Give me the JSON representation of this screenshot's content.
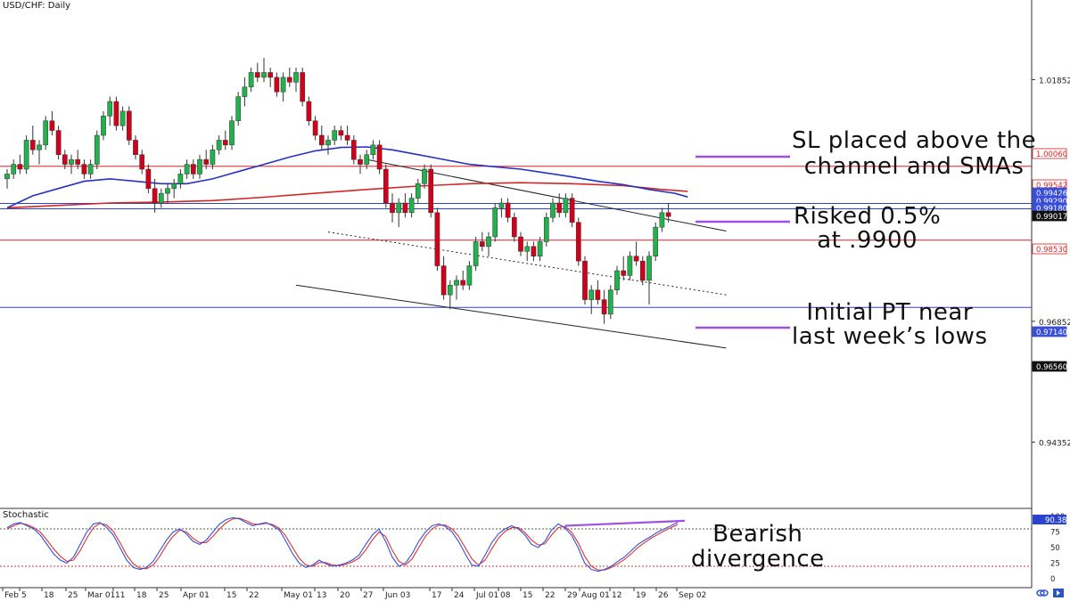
{
  "symbol_title": "USD/CHF: Daily",
  "stochastic_title": "Stochastic",
  "annotations": {
    "sl": [
      "SL placed above the",
      "channel and SMAs"
    ],
    "risk": [
      "Risked 0.5%",
      "at .9900"
    ],
    "pt": [
      "Initial PT near",
      "last week’s lows"
    ],
    "divergence": [
      "Bearish",
      "divergence"
    ]
  },
  "colors": {
    "up_candle": "#22b14c",
    "down_candle": "#d0021b",
    "sma_fast": "#2431c6",
    "sma_slow": "#d32626",
    "level_red": "#e02020",
    "level_blue": "#3040d0",
    "annotation_purple": "#a050e0",
    "stoch_k": "#3050e0",
    "stoch_d": "#e03030"
  },
  "chart_data": {
    "type": "candlestick",
    "price_axis_labels": [
      "1.01852",
      "0.96852",
      "0.94352"
    ],
    "price_ylim": [
      0.93,
      1.035
    ],
    "price_badges": [
      {
        "label": "1.00060",
        "value": 1.0006,
        "style": "red"
      },
      {
        "label": "0.99542",
        "value": 0.99542,
        "style": "red"
      },
      {
        "label": "0.99426",
        "value": 0.99426,
        "style": "blue"
      },
      {
        "label": "0.99290",
        "value": 0.9929,
        "style": "blue"
      },
      {
        "label": "0.99180",
        "value": 0.9918,
        "style": "blue"
      },
      {
        "label": "0.99017",
        "value": 0.99017,
        "style": "current"
      },
      {
        "label": "0.98530",
        "value": 0.9853,
        "style": "red"
      },
      {
        "label": "0.97140",
        "value": 0.9714,
        "style": "blue"
      },
      {
        "label": "0.96560",
        "value": 0.9656,
        "style": "current"
      }
    ],
    "horizontal_levels": [
      {
        "value": 1.0006,
        "color": "red"
      },
      {
        "value": 0.9929,
        "color": "blue"
      },
      {
        "value": 0.9918,
        "color": "blue"
      },
      {
        "value": 0.9853,
        "color": "red"
      },
      {
        "value": 0.9714,
        "color": "blue"
      }
    ],
    "x_labels": [
      "Feb",
      "5",
      "18",
      "25",
      "Mar 01",
      "11",
      "18",
      "25",
      "Apr 01",
      "15",
      "22",
      "May 01",
      "13",
      "20",
      "27",
      "Jun 03",
      "17",
      "24",
      "Jul 01",
      "08",
      "15",
      "22",
      "29",
      "Aug 01",
      "12",
      "19",
      "26",
      "Sep 02"
    ],
    "candles": [
      [
        0.998,
        1.0,
        0.996,
        0.999
      ],
      [
        0.999,
        1.002,
        0.998,
        1.001
      ],
      [
        1.001,
        1.003,
        0.999,
        1.0
      ],
      [
        1.0,
        1.007,
        0.999,
        1.006
      ],
      [
        1.006,
        1.009,
        1.003,
        1.004
      ],
      [
        1.004,
        1.006,
        1.001,
        1.005
      ],
      [
        1.005,
        1.011,
        1.004,
        1.01
      ],
      [
        1.01,
        1.012,
        1.007,
        1.008
      ],
      [
        1.008,
        1.009,
        1.002,
        1.003
      ],
      [
        1.003,
        1.004,
        1.0,
        1.001
      ],
      [
        1.001,
        1.003,
        0.999,
        1.002
      ],
      [
        1.002,
        1.004,
        1.0,
        1.001
      ],
      [
        1.001,
        1.002,
        0.998,
        0.999
      ],
      [
        0.999,
        1.002,
        0.998,
        1.001
      ],
      [
        1.001,
        1.008,
        1.0,
        1.007
      ],
      [
        1.007,
        1.012,
        1.006,
        1.011
      ],
      [
        1.011,
        1.015,
        1.009,
        1.014
      ],
      [
        1.014,
        1.015,
        1.008,
        1.009
      ],
      [
        1.009,
        1.013,
        1.008,
        1.012
      ],
      [
        1.012,
        1.013,
        1.005,
        1.006
      ],
      [
        1.006,
        1.007,
        1.002,
        1.003
      ],
      [
        1.003,
        1.004,
        0.999,
        1.0
      ],
      [
        1.0,
        1.001,
        0.995,
        0.996
      ],
      [
        0.996,
        0.998,
        0.991,
        0.993
      ],
      [
        0.993,
        0.996,
        0.992,
        0.995
      ],
      [
        0.995,
        0.997,
        0.993,
        0.996
      ],
      [
        0.996,
        0.998,
        0.994,
        0.997
      ],
      [
        0.997,
        1.0,
        0.996,
        0.999
      ],
      [
        0.999,
        1.002,
        0.998,
        1.001
      ],
      [
        1.001,
        1.002,
        0.998,
        0.999
      ],
      [
        0.999,
        1.003,
        0.998,
        1.002
      ],
      [
        1.002,
        1.004,
        1.0,
        1.001
      ],
      [
        1.001,
        1.005,
        1.0,
        1.004
      ],
      [
        1.004,
        1.007,
        1.003,
        1.006
      ],
      [
        1.006,
        1.008,
        1.004,
        1.005
      ],
      [
        1.005,
        1.011,
        1.004,
        1.01
      ],
      [
        1.01,
        1.016,
        1.009,
        1.015
      ],
      [
        1.015,
        1.019,
        1.013,
        1.017
      ],
      [
        1.017,
        1.021,
        1.016,
        1.02
      ],
      [
        1.02,
        1.022,
        1.018,
        1.019
      ],
      [
        1.019,
        1.023,
        1.018,
        1.02
      ],
      [
        1.02,
        1.021,
        1.017,
        1.019
      ],
      [
        1.019,
        1.02,
        1.015,
        1.016
      ],
      [
        1.016,
        1.02,
        1.014,
        1.019
      ],
      [
        1.019,
        1.021,
        1.017,
        1.018
      ],
      [
        1.018,
        1.021,
        1.016,
        1.02
      ],
      [
        1.02,
        1.021,
        1.013,
        1.014
      ],
      [
        1.014,
        1.015,
        1.009,
        1.01
      ],
      [
        1.01,
        1.011,
        1.006,
        1.007
      ],
      [
        1.007,
        1.009,
        1.004,
        1.005
      ],
      [
        1.005,
        1.007,
        1.003,
        1.006
      ],
      [
        1.006,
        1.009,
        1.005,
        1.008
      ],
      [
        1.008,
        1.009,
        1.006,
        1.007
      ],
      [
        1.007,
        1.009,
        1.005,
        1.006
      ],
      [
        1.006,
        1.007,
        1.001,
        1.002
      ],
      [
        1.002,
        1.003,
        0.999,
        1.001
      ],
      [
        1.001,
        1.004,
        1.0,
        1.003
      ],
      [
        1.003,
        1.006,
        1.002,
        1.005
      ],
      [
        1.005,
        1.006,
        0.999,
        1.0
      ],
      [
        1.0,
        1.001,
        0.992,
        0.993
      ],
      [
        0.993,
        0.995,
        0.989,
        0.991
      ],
      [
        0.991,
        0.994,
        0.988,
        0.993
      ],
      [
        0.993,
        0.995,
        0.99,
        0.991
      ],
      [
        0.991,
        0.995,
        0.99,
        0.994
      ],
      [
        0.994,
        0.998,
        0.993,
        0.997
      ],
      [
        0.997,
        1.001,
        0.996,
        1.0
      ],
      [
        1.0,
        1.001,
        0.99,
        0.991
      ],
      [
        0.991,
        0.992,
        0.979,
        0.98
      ],
      [
        0.98,
        0.982,
        0.973,
        0.974
      ],
      [
        0.974,
        0.977,
        0.971,
        0.976
      ],
      [
        0.976,
        0.978,
        0.973,
        0.977
      ],
      [
        0.977,
        0.979,
        0.975,
        0.976
      ],
      [
        0.976,
        0.981,
        0.975,
        0.98
      ],
      [
        0.98,
        0.986,
        0.979,
        0.985
      ],
      [
        0.985,
        0.987,
        0.983,
        0.984
      ],
      [
        0.984,
        0.987,
        0.982,
        0.986
      ],
      [
        0.986,
        0.993,
        0.985,
        0.992
      ],
      [
        0.992,
        0.994,
        0.99,
        0.993
      ],
      [
        0.993,
        0.994,
        0.989,
        0.99
      ],
      [
        0.99,
        0.991,
        0.985,
        0.986
      ],
      [
        0.986,
        0.987,
        0.982,
        0.983
      ],
      [
        0.983,
        0.985,
        0.981,
        0.984
      ],
      [
        0.984,
        0.985,
        0.981,
        0.982
      ],
      [
        0.982,
        0.986,
        0.981,
        0.985
      ],
      [
        0.985,
        0.991,
        0.984,
        0.99
      ],
      [
        0.99,
        0.994,
        0.989,
        0.993
      ],
      [
        0.993,
        0.995,
        0.99,
        0.991
      ],
      [
        0.991,
        0.995,
        0.99,
        0.994
      ],
      [
        0.994,
        0.995,
        0.988,
        0.989
      ],
      [
        0.989,
        0.99,
        0.98,
        0.981
      ],
      [
        0.981,
        0.982,
        0.972,
        0.973
      ],
      [
        0.973,
        0.976,
        0.97,
        0.975
      ],
      [
        0.975,
        0.977,
        0.972,
        0.973
      ],
      [
        0.973,
        0.975,
        0.968,
        0.97
      ],
      [
        0.97,
        0.976,
        0.969,
        0.975
      ],
      [
        0.975,
        0.98,
        0.974,
        0.979
      ],
      [
        0.979,
        0.982,
        0.977,
        0.978
      ],
      [
        0.978,
        0.983,
        0.977,
        0.982
      ],
      [
        0.982,
        0.985,
        0.98,
        0.981
      ],
      [
        0.981,
        0.982,
        0.976,
        0.977
      ],
      [
        0.977,
        0.983,
        0.972,
        0.982
      ],
      [
        0.982,
        0.989,
        0.981,
        0.988
      ],
      [
        0.988,
        0.992,
        0.987,
        0.991
      ],
      [
        0.991,
        0.993,
        0.989,
        0.9902
      ]
    ],
    "sma_fast": [
      [
        0,
        0.992
      ],
      [
        4,
        0.9945
      ],
      [
        8,
        0.996
      ],
      [
        12,
        0.9975
      ],
      [
        16,
        0.998
      ],
      [
        20,
        0.9975
      ],
      [
        24,
        0.997
      ],
      [
        28,
        0.997
      ],
      [
        32,
        0.998
      ],
      [
        36,
        0.9995
      ],
      [
        40,
        1.001
      ],
      [
        44,
        1.0025
      ],
      [
        48,
        1.0038
      ],
      [
        52,
        1.0045
      ],
      [
        56,
        1.0046
      ],
      [
        60,
        1.004
      ],
      [
        64,
        1.003
      ],
      [
        68,
        1.002
      ],
      [
        72,
        1.001
      ],
      [
        76,
        1.0005
      ],
      [
        80,
        1.0
      ],
      [
        84,
        0.9992
      ],
      [
        88,
        0.9984
      ],
      [
        92,
        0.9975
      ],
      [
        96,
        0.9968
      ],
      [
        100,
        0.9958
      ],
      [
        104,
        0.995
      ],
      [
        106,
        0.99426
      ]
    ],
    "sma_slow": [
      [
        0,
        0.992
      ],
      [
        8,
        0.9925
      ],
      [
        16,
        0.993
      ],
      [
        24,
        0.9932
      ],
      [
        32,
        0.9935
      ],
      [
        40,
        0.9942
      ],
      [
        48,
        0.995
      ],
      [
        56,
        0.9958
      ],
      [
        64,
        0.9965
      ],
      [
        72,
        0.997
      ],
      [
        80,
        0.9972
      ],
      [
        88,
        0.997
      ],
      [
        96,
        0.9966
      ],
      [
        102,
        0.9958
      ],
      [
        106,
        0.99542
      ]
    ],
    "channel_lines": [
      {
        "from": [
          56,
          1.002
        ],
        "to": [
          112,
          0.9872
        ],
        "style": "solid"
      },
      {
        "from": [
          50,
          0.987
        ],
        "to": [
          112,
          0.974
        ],
        "style": "dotted"
      },
      {
        "from": [
          45,
          0.976
        ],
        "to": [
          112,
          0.963
        ],
        "style": "solid"
      }
    ],
    "stochastic": {
      "ylim": [
        0,
        100
      ],
      "axis_labels": [
        "100",
        "75",
        "50",
        "25",
        "0"
      ],
      "levels": [
        80,
        20
      ],
      "current_label": "90.38",
      "k": [
        82,
        88,
        90,
        85,
        80,
        70,
        55,
        40,
        30,
        25,
        35,
        55,
        75,
        88,
        90,
        82,
        70,
        50,
        30,
        18,
        15,
        18,
        28,
        45,
        62,
        75,
        80,
        72,
        60,
        55,
        62,
        75,
        88,
        95,
        98,
        96,
        90,
        85,
        88,
        90,
        85,
        78,
        60,
        40,
        25,
        18,
        22,
        30,
        24,
        20,
        22,
        25,
        30,
        38,
        55,
        70,
        80,
        60,
        35,
        20,
        25,
        40,
        60,
        75,
        85,
        88,
        84,
        75,
        60,
        40,
        22,
        20,
        38,
        58,
        72,
        80,
        85,
        80,
        70,
        55,
        50,
        60,
        78,
        88,
        82,
        70,
        50,
        25,
        15,
        12,
        15,
        20,
        28,
        35,
        45,
        55,
        62,
        68,
        75,
        80,
        85,
        90.38
      ],
      "d": [
        80,
        85,
        89,
        87,
        82,
        75,
        62,
        48,
        36,
        28,
        30,
        45,
        65,
        82,
        89,
        86,
        76,
        58,
        38,
        24,
        17,
        16,
        22,
        36,
        54,
        68,
        78,
        75,
        65,
        58,
        58,
        68,
        80,
        90,
        96,
        97,
        93,
        88,
        87,
        89,
        87,
        81,
        68,
        50,
        33,
        22,
        20,
        26,
        26,
        22,
        21,
        23,
        27,
        33,
        46,
        62,
        75,
        68,
        46,
        28,
        22,
        32,
        50,
        68,
        80,
        86,
        86,
        80,
        68,
        50,
        32,
        22,
        30,
        48,
        65,
        76,
        82,
        82,
        74,
        62,
        54,
        56,
        70,
        82,
        84,
        75,
        58,
        36,
        20,
        14,
        14,
        18,
        24,
        31,
        40,
        50,
        58,
        65,
        71,
        77,
        82,
        87
      ]
    },
    "divergence_line": {
      "from": [
        81,
        85
      ],
      "to": [
        104,
        93
      ]
    }
  }
}
